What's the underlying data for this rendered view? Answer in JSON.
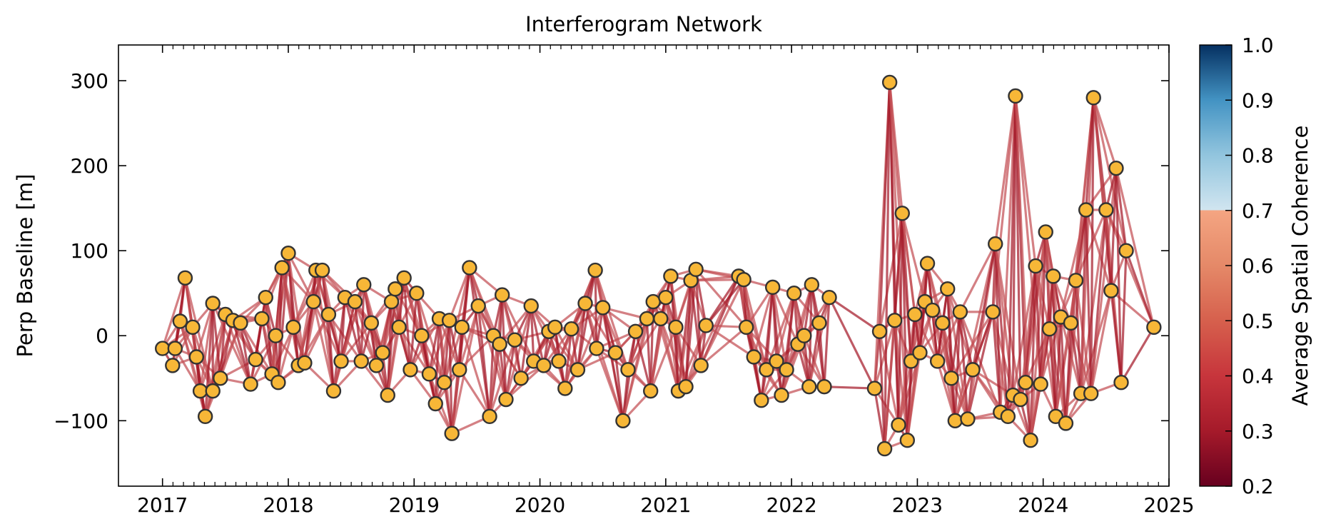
{
  "chart_data": {
    "type": "scatter",
    "title": "Interferogram Network",
    "xlabel": "",
    "ylabel": "Perp Baseline [m]",
    "xlim": [
      2016.65,
      2025.0
    ],
    "ylim": [
      -177,
      342
    ],
    "xticks": [
      2017,
      2018,
      2019,
      2020,
      2021,
      2022,
      2023,
      2024,
      2025
    ],
    "xtick_labels": [
      "2017",
      "2018",
      "2019",
      "2020",
      "2021",
      "2022",
      "2023",
      "2024",
      "2025"
    ],
    "yticks": [
      -100,
      0,
      100,
      200,
      300
    ],
    "ytick_labels": [
      "−100",
      "0",
      "100",
      "200",
      "300"
    ],
    "grid": false,
    "marker_face_color": "#f7b737",
    "marker_edge_color": "#333333",
    "edge_color_low": "#a51a2a",
    "edge_color_mid": "#c44f55",
    "acquisitions": [
      {
        "date": 2017.0,
        "bperp": -15
      },
      {
        "date": 2017.08,
        "bperp": -35
      },
      {
        "date": 2017.1,
        "bperp": -15
      },
      {
        "date": 2017.14,
        "bperp": 17
      },
      {
        "date": 2017.18,
        "bperp": 68
      },
      {
        "date": 2017.24,
        "bperp": 10
      },
      {
        "date": 2017.27,
        "bperp": -25
      },
      {
        "date": 2017.3,
        "bperp": -65
      },
      {
        "date": 2017.34,
        "bperp": -95
      },
      {
        "date": 2017.4,
        "bperp": -65
      },
      {
        "date": 2017.4,
        "bperp": 38
      },
      {
        "date": 2017.46,
        "bperp": -50
      },
      {
        "date": 2017.5,
        "bperp": 25
      },
      {
        "date": 2017.56,
        "bperp": 18
      },
      {
        "date": 2017.62,
        "bperp": 15
      },
      {
        "date": 2017.7,
        "bperp": -57
      },
      {
        "date": 2017.74,
        "bperp": -28
      },
      {
        "date": 2017.79,
        "bperp": 20
      },
      {
        "date": 2017.82,
        "bperp": 45
      },
      {
        "date": 2017.87,
        "bperp": -45
      },
      {
        "date": 2017.9,
        "bperp": 0
      },
      {
        "date": 2017.92,
        "bperp": -55
      },
      {
        "date": 2017.95,
        "bperp": 80
      },
      {
        "date": 2018.0,
        "bperp": 97
      },
      {
        "date": 2018.04,
        "bperp": 10
      },
      {
        "date": 2018.08,
        "bperp": -35
      },
      {
        "date": 2018.13,
        "bperp": -32
      },
      {
        "date": 2018.2,
        "bperp": 40
      },
      {
        "date": 2018.22,
        "bperp": 77
      },
      {
        "date": 2018.27,
        "bperp": 77
      },
      {
        "date": 2018.32,
        "bperp": 25
      },
      {
        "date": 2018.36,
        "bperp": -65
      },
      {
        "date": 2018.42,
        "bperp": -30
      },
      {
        "date": 2018.45,
        "bperp": 45
      },
      {
        "date": 2018.53,
        "bperp": 40
      },
      {
        "date": 2018.58,
        "bperp": -30
      },
      {
        "date": 2018.6,
        "bperp": 60
      },
      {
        "date": 2018.66,
        "bperp": 15
      },
      {
        "date": 2018.7,
        "bperp": -35
      },
      {
        "date": 2018.75,
        "bperp": -20
      },
      {
        "date": 2018.79,
        "bperp": -70
      },
      {
        "date": 2018.82,
        "bperp": 40
      },
      {
        "date": 2018.85,
        "bperp": 55
      },
      {
        "date": 2018.88,
        "bperp": 10
      },
      {
        "date": 2018.92,
        "bperp": 68
      },
      {
        "date": 2018.97,
        "bperp": -40
      },
      {
        "date": 2019.02,
        "bperp": 50
      },
      {
        "date": 2019.06,
        "bperp": 0
      },
      {
        "date": 2019.12,
        "bperp": -45
      },
      {
        "date": 2019.17,
        "bperp": -80
      },
      {
        "date": 2019.2,
        "bperp": 20
      },
      {
        "date": 2019.24,
        "bperp": -55
      },
      {
        "date": 2019.28,
        "bperp": 18
      },
      {
        "date": 2019.3,
        "bperp": -115
      },
      {
        "date": 2019.36,
        "bperp": -40
      },
      {
        "date": 2019.38,
        "bperp": 10
      },
      {
        "date": 2019.44,
        "bperp": 80
      },
      {
        "date": 2019.51,
        "bperp": 35
      },
      {
        "date": 2019.6,
        "bperp": -95
      },
      {
        "date": 2019.63,
        "bperp": 0
      },
      {
        "date": 2019.68,
        "bperp": -10
      },
      {
        "date": 2019.7,
        "bperp": 48
      },
      {
        "date": 2019.73,
        "bperp": -75
      },
      {
        "date": 2019.8,
        "bperp": -5
      },
      {
        "date": 2019.85,
        "bperp": -50
      },
      {
        "date": 2019.93,
        "bperp": 35
      },
      {
        "date": 2019.95,
        "bperp": -30
      },
      {
        "date": 2020.03,
        "bperp": -35
      },
      {
        "date": 2020.07,
        "bperp": 5
      },
      {
        "date": 2020.12,
        "bperp": 10
      },
      {
        "date": 2020.15,
        "bperp": -30
      },
      {
        "date": 2020.2,
        "bperp": -62
      },
      {
        "date": 2020.25,
        "bperp": 8
      },
      {
        "date": 2020.3,
        "bperp": -40
      },
      {
        "date": 2020.36,
        "bperp": 38
      },
      {
        "date": 2020.44,
        "bperp": 77
      },
      {
        "date": 2020.45,
        "bperp": -15
      },
      {
        "date": 2020.5,
        "bperp": 33
      },
      {
        "date": 2020.6,
        "bperp": -20
      },
      {
        "date": 2020.66,
        "bperp": -100
      },
      {
        "date": 2020.7,
        "bperp": -40
      },
      {
        "date": 2020.76,
        "bperp": 5
      },
      {
        "date": 2020.85,
        "bperp": 20
      },
      {
        "date": 2020.88,
        "bperp": -65
      },
      {
        "date": 2020.9,
        "bperp": 40
      },
      {
        "date": 2020.96,
        "bperp": 20
      },
      {
        "date": 2021.0,
        "bperp": 45
      },
      {
        "date": 2021.04,
        "bperp": 70
      },
      {
        "date": 2021.08,
        "bperp": 10
      },
      {
        "date": 2021.1,
        "bperp": -65
      },
      {
        "date": 2021.16,
        "bperp": -60
      },
      {
        "date": 2021.2,
        "bperp": 65
      },
      {
        "date": 2021.24,
        "bperp": 78
      },
      {
        "date": 2021.28,
        "bperp": -35
      },
      {
        "date": 2021.32,
        "bperp": 12
      },
      {
        "date": 2021.58,
        "bperp": 70
      },
      {
        "date": 2021.62,
        "bperp": 66
      },
      {
        "date": 2021.64,
        "bperp": 10
      },
      {
        "date": 2021.7,
        "bperp": -25
      },
      {
        "date": 2021.76,
        "bperp": -76
      },
      {
        "date": 2021.8,
        "bperp": -40
      },
      {
        "date": 2021.85,
        "bperp": 57
      },
      {
        "date": 2021.88,
        "bperp": -30
      },
      {
        "date": 2021.92,
        "bperp": -70
      },
      {
        "date": 2021.96,
        "bperp": -40
      },
      {
        "date": 2022.02,
        "bperp": 50
      },
      {
        "date": 2022.05,
        "bperp": -10
      },
      {
        "date": 2022.1,
        "bperp": 0
      },
      {
        "date": 2022.14,
        "bperp": -60
      },
      {
        "date": 2022.16,
        "bperp": 60
      },
      {
        "date": 2022.22,
        "bperp": 15
      },
      {
        "date": 2022.26,
        "bperp": -60
      },
      {
        "date": 2022.3,
        "bperp": 45
      },
      {
        "date": 2022.66,
        "bperp": -62
      },
      {
        "date": 2022.7,
        "bperp": 5
      },
      {
        "date": 2022.74,
        "bperp": -133
      },
      {
        "date": 2022.78,
        "bperp": 298
      },
      {
        "date": 2022.82,
        "bperp": 18
      },
      {
        "date": 2022.85,
        "bperp": -105
      },
      {
        "date": 2022.88,
        "bperp": 144
      },
      {
        "date": 2022.92,
        "bperp": -123
      },
      {
        "date": 2022.95,
        "bperp": -30
      },
      {
        "date": 2022.98,
        "bperp": 25
      },
      {
        "date": 2023.02,
        "bperp": -20
      },
      {
        "date": 2023.06,
        "bperp": 40
      },
      {
        "date": 2023.08,
        "bperp": 85
      },
      {
        "date": 2023.12,
        "bperp": 30
      },
      {
        "date": 2023.16,
        "bperp": -30
      },
      {
        "date": 2023.2,
        "bperp": 15
      },
      {
        "date": 2023.24,
        "bperp": 55
      },
      {
        "date": 2023.27,
        "bperp": -50
      },
      {
        "date": 2023.3,
        "bperp": -100
      },
      {
        "date": 2023.34,
        "bperp": 28
      },
      {
        "date": 2023.4,
        "bperp": -98
      },
      {
        "date": 2023.44,
        "bperp": -40
      },
      {
        "date": 2023.6,
        "bperp": 28
      },
      {
        "date": 2023.62,
        "bperp": 108
      },
      {
        "date": 2023.66,
        "bperp": -90
      },
      {
        "date": 2023.72,
        "bperp": -95
      },
      {
        "date": 2023.76,
        "bperp": -70
      },
      {
        "date": 2023.78,
        "bperp": 282
      },
      {
        "date": 2023.82,
        "bperp": -75
      },
      {
        "date": 2023.86,
        "bperp": -55
      },
      {
        "date": 2023.9,
        "bperp": -123
      },
      {
        "date": 2023.94,
        "bperp": 82
      },
      {
        "date": 2023.98,
        "bperp": -57
      },
      {
        "date": 2024.02,
        "bperp": 122
      },
      {
        "date": 2024.05,
        "bperp": 8
      },
      {
        "date": 2024.08,
        "bperp": 70
      },
      {
        "date": 2024.1,
        "bperp": -95
      },
      {
        "date": 2024.14,
        "bperp": 22
      },
      {
        "date": 2024.18,
        "bperp": -103
      },
      {
        "date": 2024.22,
        "bperp": 15
      },
      {
        "date": 2024.26,
        "bperp": 65
      },
      {
        "date": 2024.3,
        "bperp": -68
      },
      {
        "date": 2024.34,
        "bperp": 148
      },
      {
        "date": 2024.38,
        "bperp": -68
      },
      {
        "date": 2024.4,
        "bperp": 280
      },
      {
        "date": 2024.5,
        "bperp": 148
      },
      {
        "date": 2024.54,
        "bperp": 53
      },
      {
        "date": 2024.58,
        "bperp": 197
      },
      {
        "date": 2024.62,
        "bperp": -55
      },
      {
        "date": 2024.66,
        "bperp": 100
      },
      {
        "date": 2024.88,
        "bperp": 10
      }
    ],
    "colorbar": {
      "label": "Average Spatial Coherence",
      "range": [
        0.2,
        1.0
      ],
      "ticks": [
        0.2,
        0.3,
        0.4,
        0.5,
        0.6,
        0.7,
        0.8,
        0.9,
        1.0
      ],
      "tick_labels": [
        "0.2",
        "0.3",
        "0.4",
        "0.5",
        "0.6",
        "0.7",
        "0.8",
        "0.9",
        "1.0"
      ],
      "colormap": "RdBu",
      "stops": [
        {
          "value": 0.2,
          "color": "#67001f"
        },
        {
          "value": 0.3,
          "color": "#a51a2a"
        },
        {
          "value": 0.4,
          "color": "#c7353c"
        },
        {
          "value": 0.5,
          "color": "#d6604d"
        },
        {
          "value": 0.6,
          "color": "#e58968"
        },
        {
          "value": 0.7,
          "color": "#f4a582"
        },
        {
          "value": 0.7001,
          "color": "#d1e5f0"
        },
        {
          "value": 0.8,
          "color": "#92c5de"
        },
        {
          "value": 0.9,
          "color": "#4393c3"
        },
        {
          "value": 1.0,
          "color": "#053061"
        }
      ]
    }
  }
}
